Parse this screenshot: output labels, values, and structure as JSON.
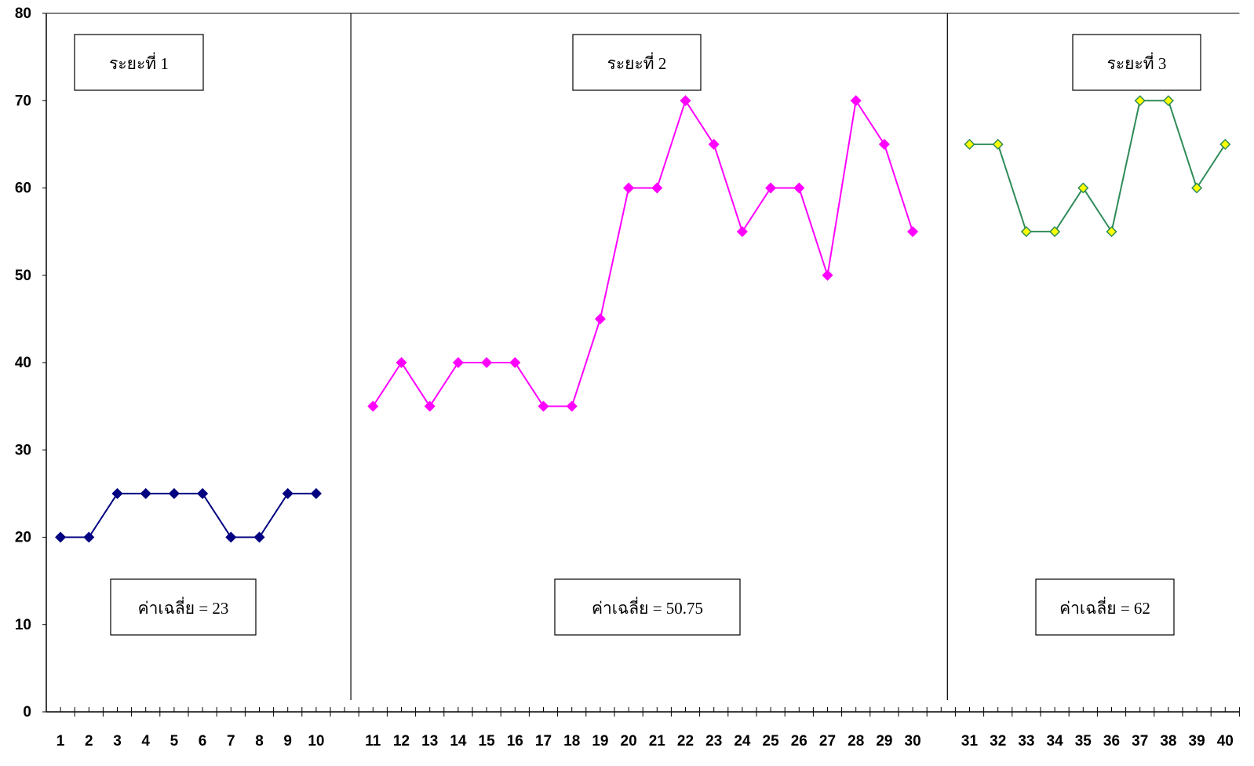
{
  "chart_data": {
    "type": "line",
    "categories": [
      1,
      2,
      3,
      4,
      5,
      6,
      7,
      8,
      9,
      10,
      null,
      11,
      12,
      13,
      14,
      15,
      16,
      17,
      18,
      19,
      20,
      21,
      22,
      23,
      24,
      25,
      26,
      27,
      28,
      29,
      30,
      null,
      31,
      32,
      33,
      34,
      35,
      36,
      37,
      38,
      39,
      40
    ],
    "series": [
      {
        "color": "#000080",
        "marker_color": "#000080",
        "values": [
          20,
          20,
          25,
          25,
          25,
          25,
          20,
          20,
          25,
          25,
          null,
          null,
          null,
          null,
          null,
          null,
          null,
          null,
          null,
          null,
          null,
          null,
          null,
          null,
          null,
          null,
          null,
          null,
          null,
          null,
          null,
          null,
          null,
          null,
          null,
          null,
          null,
          null,
          null,
          null,
          null,
          null
        ]
      },
      {
        "color": "#ff00ff",
        "marker_color": "#ff00ff",
        "values": [
          null,
          null,
          null,
          null,
          null,
          null,
          null,
          null,
          null,
          null,
          null,
          35,
          40,
          35,
          40,
          40,
          40,
          35,
          35,
          45,
          60,
          60,
          70,
          65,
          55,
          60,
          60,
          50,
          70,
          65,
          55,
          null,
          null,
          null,
          null,
          null,
          null,
          null,
          null,
          null,
          null,
          null
        ]
      },
      {
        "color": "#2e8b57",
        "marker_color": "#ffff00",
        "values": [
          null,
          null,
          null,
          null,
          null,
          null,
          null,
          null,
          null,
          null,
          null,
          null,
          null,
          null,
          null,
          null,
          null,
          null,
          null,
          null,
          null,
          null,
          null,
          null,
          null,
          null,
          null,
          null,
          null,
          null,
          null,
          null,
          65,
          65,
          55,
          55,
          60,
          55,
          70,
          70,
          60,
          65
        ]
      }
    ],
    "ylim": [
      0,
      80
    ],
    "yticks": [
      0,
      10,
      20,
      30,
      40,
      50,
      60,
      70,
      80
    ],
    "phase_labels": [
      "ระยะที่  1",
      "ระยะที่  2",
      "ระยะที่  3"
    ],
    "mean_labels": [
      "ค่าเฉลี่ย = 23",
      "ค่าเฉลี่ย =  50.75",
      "ค่าเฉลี่ย = 62"
    ]
  }
}
